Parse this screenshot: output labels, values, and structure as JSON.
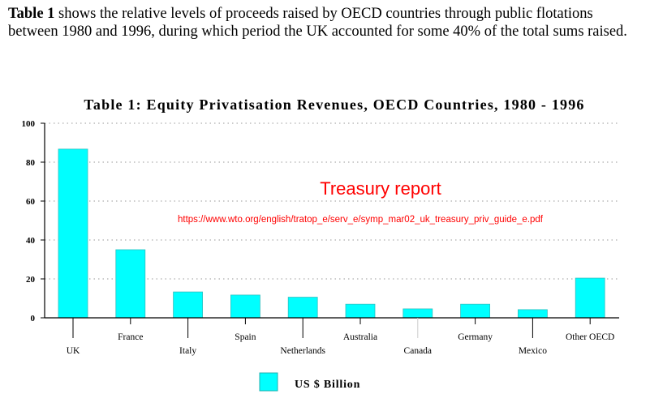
{
  "intro": {
    "bold": "Table 1",
    "text": " shows the relative levels of proceeds raised by OECD countries through public flotations between 1980 and 1996, during which period the UK accounted for some 40% of the total sums raised."
  },
  "annotation": {
    "title": "Treasury report",
    "url": "https://www.wto.org/english/tratop_e/serv_e/symp_mar02_uk_treasury_priv_guide_e.pdf",
    "color": "#ff0000"
  },
  "chart_data": {
    "type": "bar",
    "title": "Table 1: Equity Privatisation Revenues, OECD Countries, 1980 - 1996",
    "categories": [
      "UK",
      "France",
      "Italy",
      "Spain",
      "Netherlands",
      "Australia",
      "Canada",
      "Germany",
      "Mexico",
      "Other OECD"
    ],
    "series": [
      {
        "name": "US $ Billion",
        "values": [
          86.7,
          35,
          13.3,
          11.7,
          10.6,
          7,
          4.6,
          7,
          4.2,
          20.4
        ],
        "color": "#00ffff"
      }
    ],
    "ylim": [
      0,
      100
    ],
    "yticks": [
      0,
      20,
      40,
      60,
      80,
      100
    ],
    "grid": true,
    "legend": "bottom-center",
    "xlabel": "",
    "ylabel": ""
  }
}
